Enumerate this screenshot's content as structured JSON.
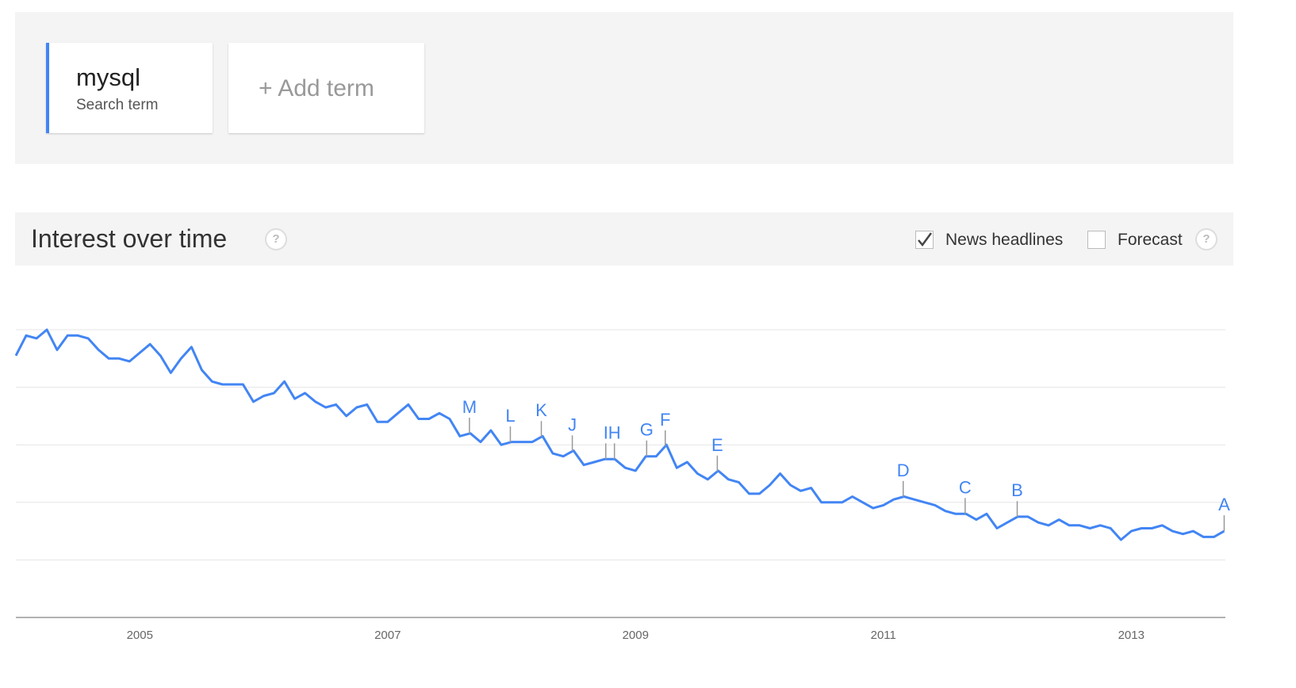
{
  "search_terms": [
    {
      "term": "mysql",
      "label": "Search term"
    }
  ],
  "add_term": "+ Add term",
  "section": {
    "title": "Interest over time",
    "help": "?",
    "options": [
      {
        "label": "News headlines",
        "checked": true
      },
      {
        "label": "Forecast",
        "checked": false
      }
    ],
    "options_help": "?"
  },
  "chart_data": {
    "type": "line",
    "color": "#4285f4",
    "x": [
      2004,
      2004.083,
      2004.167,
      2004.25,
      2004.333,
      2004.417,
      2004.5,
      2004.583,
      2004.667,
      2004.75,
      2004.833,
      2004.917,
      2005,
      2005.083,
      2005.167,
      2005.25,
      2005.333,
      2005.417,
      2005.5,
      2005.583,
      2005.667,
      2005.75,
      2005.833,
      2005.917,
      2006,
      2006.083,
      2006.167,
      2006.25,
      2006.333,
      2006.417,
      2006.5,
      2006.583,
      2006.667,
      2006.75,
      2006.833,
      2006.917,
      2007,
      2007.083,
      2007.167,
      2007.25,
      2007.333,
      2007.417,
      2007.5,
      2007.583,
      2007.667,
      2007.75,
      2007.833,
      2007.917,
      2008,
      2008.083,
      2008.167,
      2008.25,
      2008.333,
      2008.417,
      2008.5,
      2008.583,
      2008.667,
      2008.75,
      2008.833,
      2008.917,
      2009,
      2009.083,
      2009.167,
      2009.25,
      2009.333,
      2009.417,
      2009.5,
      2009.583,
      2009.667,
      2009.75,
      2009.833,
      2009.917,
      2010,
      2010.083,
      2010.167,
      2010.25,
      2010.333,
      2010.417,
      2010.5,
      2010.583,
      2010.667,
      2010.75,
      2010.833,
      2010.917,
      2011,
      2011.083,
      2011.167,
      2011.25,
      2011.333,
      2011.417,
      2011.5,
      2011.583,
      2011.667,
      2011.75,
      2011.833,
      2011.917,
      2012,
      2012.083,
      2012.167,
      2012.25,
      2012.333,
      2012.417,
      2012.5,
      2012.583,
      2012.667,
      2012.75,
      2012.833,
      2012.917,
      2013,
      2013.083,
      2013.167,
      2013.25,
      2013.333,
      2013.417,
      2013.5,
      2013.583,
      2013.667,
      2013.75
    ],
    "values": [
      91,
      98,
      97,
      100,
      93,
      98,
      98,
      97,
      93,
      90,
      90,
      89,
      92,
      95,
      91,
      85,
      90,
      94,
      86,
      82,
      81,
      81,
      81,
      75,
      77,
      78,
      82,
      76,
      78,
      75,
      73,
      74,
      70,
      73,
      74,
      68,
      68,
      71,
      74,
      69,
      69,
      71,
      69,
      63,
      64,
      61,
      65,
      60,
      61,
      61,
      61,
      63,
      57,
      56,
      58,
      53,
      54,
      55,
      55,
      52,
      51,
      56,
      56,
      60,
      52,
      54,
      50,
      48,
      51,
      48,
      47,
      43,
      43,
      46,
      50,
      46,
      44,
      45,
      40,
      40,
      40,
      42,
      40,
      38,
      39,
      41,
      42,
      41,
      40,
      39,
      37,
      36,
      36,
      34,
      36,
      31,
      33,
      35,
      35,
      33,
      32,
      34,
      32,
      32,
      31,
      32,
      31,
      27,
      30,
      31,
      31,
      32,
      30,
      29,
      30,
      28,
      28,
      30
    ],
    "xlim": [
      2004,
      2013.76
    ],
    "xticks": [
      2005,
      2007,
      2009,
      2011,
      2013
    ],
    "ylim": [
      0,
      100
    ],
    "yticks": [
      0,
      20,
      40,
      60,
      80,
      100
    ],
    "grid": true,
    "annotations": [
      {
        "label": "M",
        "x": 2007.66
      },
      {
        "label": "L",
        "x": 2007.99
      },
      {
        "label": "K",
        "x": 2008.24
      },
      {
        "label": "J",
        "x": 2008.49
      },
      {
        "label": "I",
        "x": 2008.76
      },
      {
        "label": "H",
        "x": 2008.83
      },
      {
        "label": "G",
        "x": 2009.09
      },
      {
        "label": "F",
        "x": 2009.24
      },
      {
        "label": "E",
        "x": 2009.66
      },
      {
        "label": "D",
        "x": 2011.16
      },
      {
        "label": "C",
        "x": 2011.66
      },
      {
        "label": "B",
        "x": 2012.08
      },
      {
        "label": "A",
        "x": 2013.75
      }
    ]
  }
}
